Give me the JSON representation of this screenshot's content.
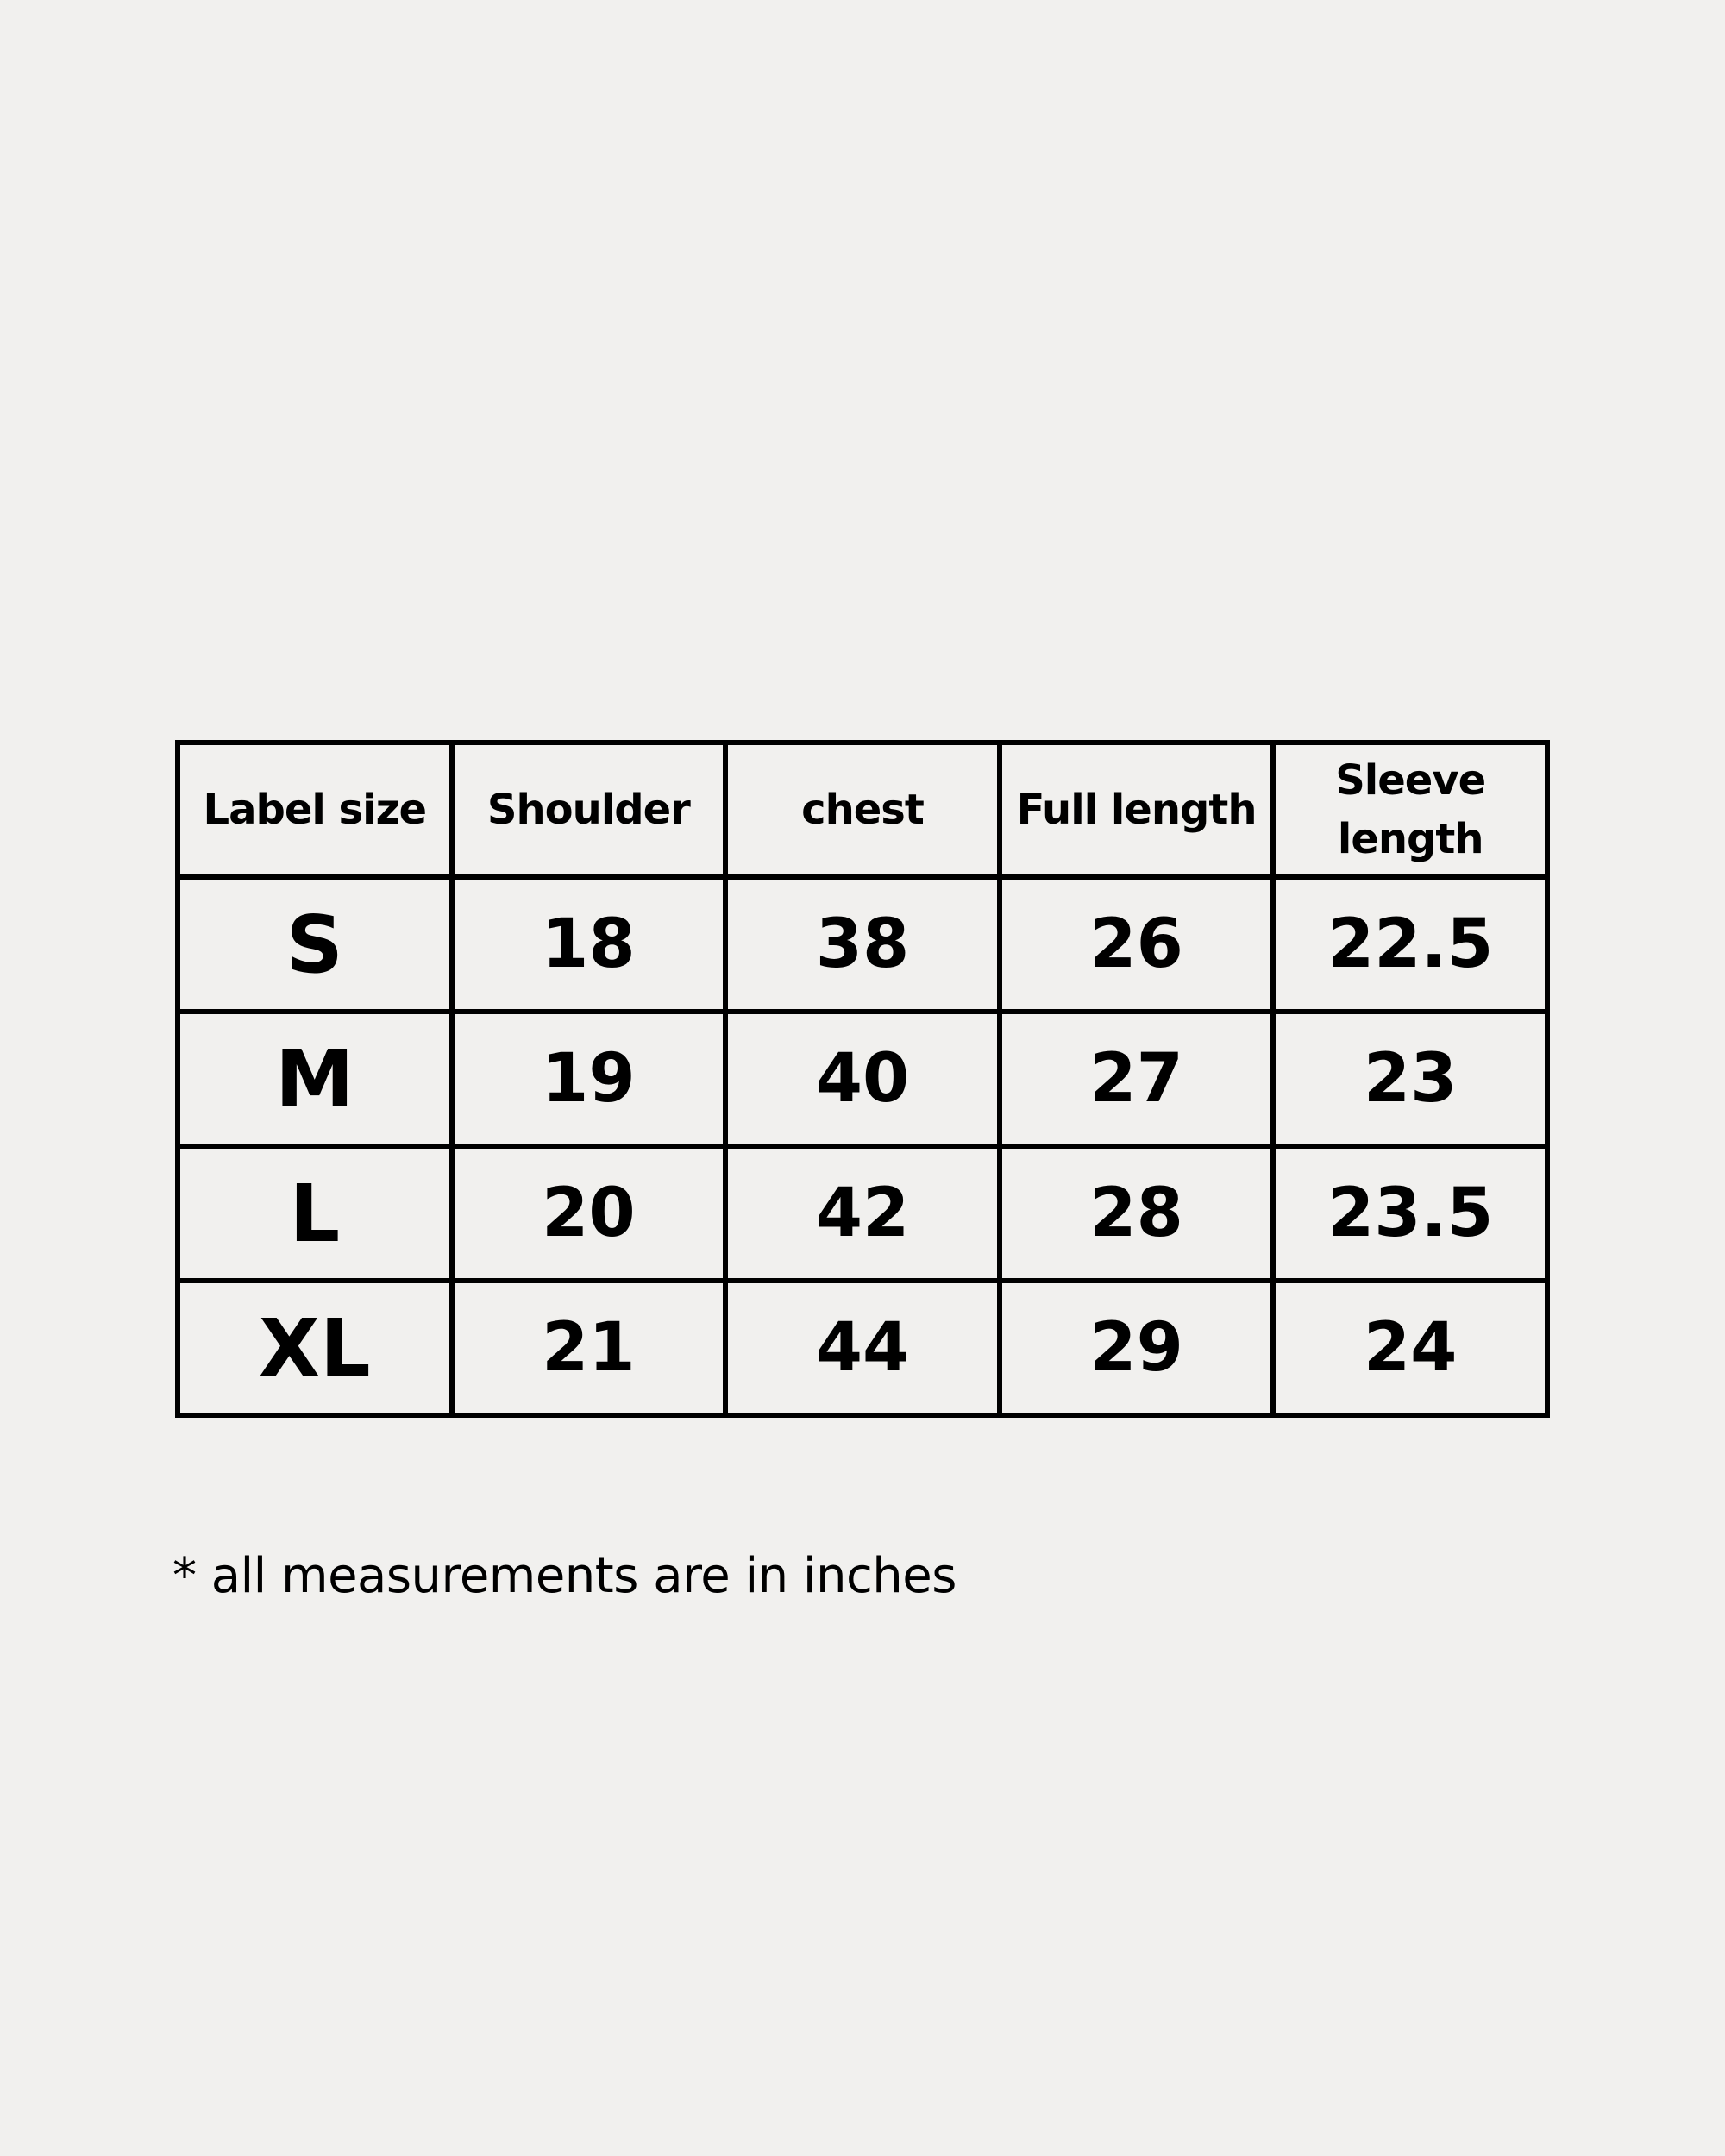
{
  "size_chart": {
    "headers": [
      "Label size",
      "Shoulder",
      "chest",
      "Full length",
      "Sleeve length"
    ],
    "rows": [
      {
        "size": "S",
        "shoulder": "18",
        "chest": "38",
        "full_length": "26",
        "sleeve_length": "22.5"
      },
      {
        "size": "M",
        "shoulder": "19",
        "chest": "40",
        "full_length": "27",
        "sleeve_length": "23"
      },
      {
        "size": "L",
        "shoulder": "20",
        "chest": "42",
        "full_length": "28",
        "sleeve_length": "23.5"
      },
      {
        "size": "XL",
        "shoulder": "21",
        "chest": "44",
        "full_length": "29",
        "sleeve_length": "24"
      }
    ]
  },
  "footnote": "* all measurements are in inches",
  "colors": {
    "background": "#f1f0ee",
    "text": "#000000"
  }
}
